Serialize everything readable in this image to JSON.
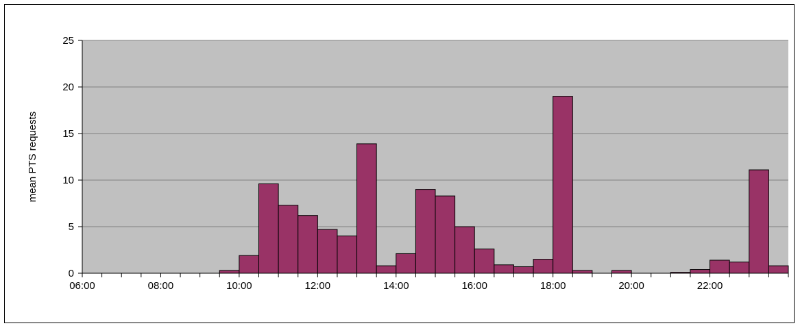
{
  "chart_data": {
    "type": "bar",
    "ylabel": "mean PTS requests",
    "xlabel": "",
    "ylim": [
      0,
      25
    ],
    "yticks": [
      0,
      5,
      10,
      15,
      20,
      25
    ],
    "xrange": [
      "06:00",
      "24:00"
    ],
    "xtick_labels": [
      "06:00",
      "08:00",
      "10:00",
      "12:00",
      "14:00",
      "16:00",
      "18:00",
      "20:00",
      "22:00"
    ],
    "bin_minutes": 30,
    "categories": [
      "06:00",
      "06:30",
      "07:00",
      "07:30",
      "08:00",
      "08:30",
      "09:00",
      "09:30",
      "10:00",
      "10:30",
      "11:00",
      "11:30",
      "12:00",
      "12:30",
      "13:00",
      "13:30",
      "14:00",
      "14:30",
      "15:00",
      "15:30",
      "16:00",
      "16:30",
      "17:00",
      "17:30",
      "18:00",
      "18:30",
      "19:00",
      "19:30",
      "20:00",
      "20:30",
      "21:00",
      "21:30",
      "22:00",
      "22:30",
      "23:00",
      "23:30"
    ],
    "values": [
      0,
      0,
      0,
      0,
      0,
      0,
      0,
      0.3,
      1.9,
      9.6,
      7.3,
      6.2,
      4.7,
      4.0,
      13.9,
      0.8,
      2.1,
      9.0,
      8.3,
      5.0,
      2.6,
      0.9,
      0.7,
      1.5,
      19.0,
      0.3,
      0,
      0.3,
      0,
      0,
      0.1,
      0.4,
      1.4,
      1.2,
      11.1,
      0.8
    ],
    "grid": true,
    "colors": {
      "bar_fill": "#993366",
      "bar_stroke": "#000000",
      "plot_background": "#c0c0c0",
      "gridline": "#808080"
    }
  }
}
